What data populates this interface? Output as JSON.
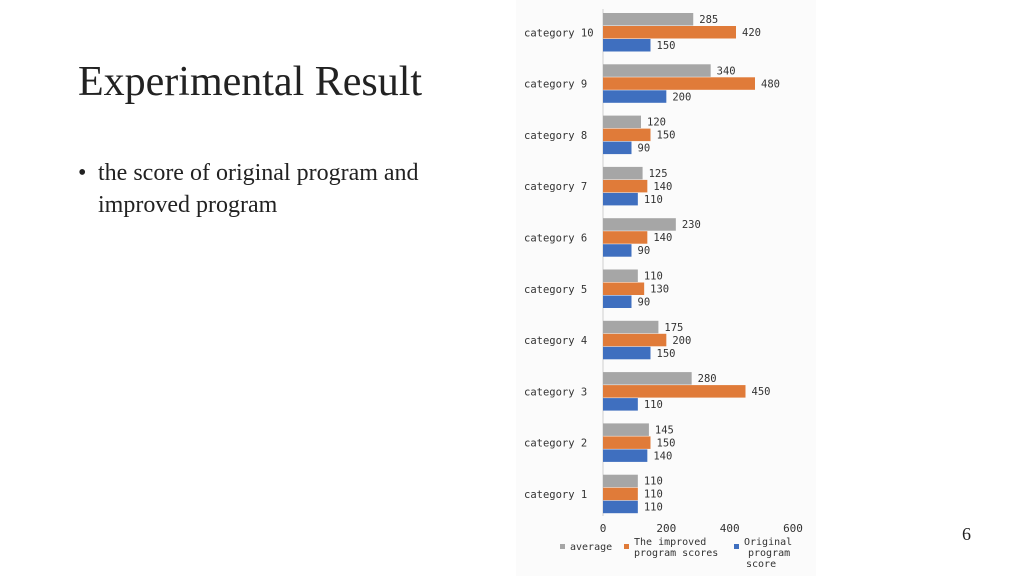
{
  "slide": {
    "title": "Experimental Result",
    "bullet_text": "the score of original program and improved program",
    "bullet_marker": "•",
    "page_number": "6"
  },
  "chart_data": {
    "type": "bar",
    "orientation": "horizontal",
    "categories": [
      "category 10",
      "category 9",
      "category 8",
      "category 7",
      "category 6",
      "category 5",
      "category 4",
      "category 3",
      "category 2",
      "category 1"
    ],
    "series": [
      {
        "name": "average",
        "color": "#a6a6a6",
        "values": [
          285,
          340,
          120,
          125,
          230,
          110,
          175,
          280,
          145,
          110
        ]
      },
      {
        "name": "The improved program scores",
        "color": "#e07b39",
        "values": [
          420,
          480,
          150,
          140,
          140,
          130,
          200,
          450,
          150,
          110
        ]
      },
      {
        "name": "Original program score",
        "color": "#3f6fbf",
        "values": [
          150,
          200,
          90,
          110,
          90,
          90,
          150,
          110,
          140,
          110
        ]
      }
    ],
    "xlim": [
      0,
      600
    ],
    "x_ticks": [
      0,
      200,
      400,
      600
    ],
    "legend": [
      "average",
      "The improved program scores",
      "Original program score"
    ],
    "legend_position": "bottom",
    "grid": false
  }
}
